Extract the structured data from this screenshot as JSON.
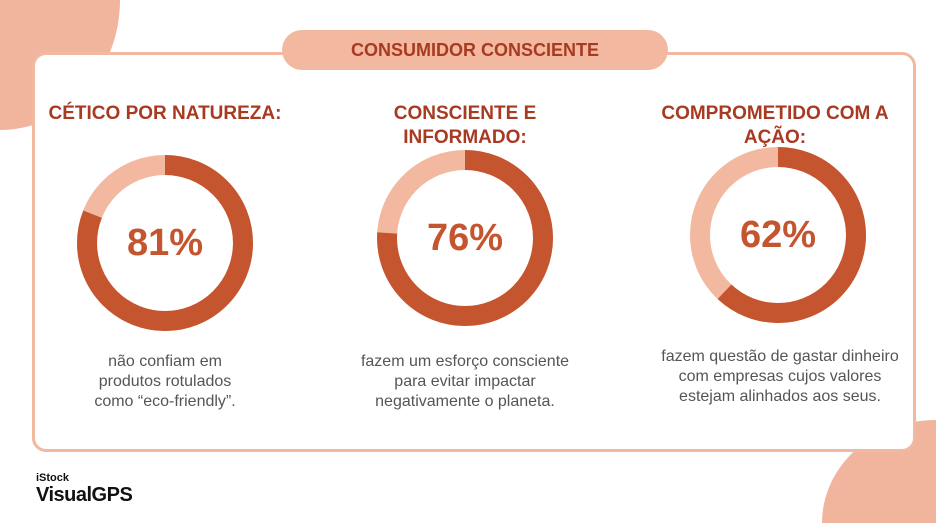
{
  "title": "CONSUMIDOR CONSCIENTE",
  "colors": {
    "dark": "#c4552f",
    "light": "#f2b8a0",
    "text": "#a83a22"
  },
  "stats": [
    {
      "heading": "CÉTICO POR NATUREZA:",
      "percent": 81,
      "label": "81%",
      "desc": "não confiam em produtos rotulados como “eco-friendly”."
    },
    {
      "heading": "CONSCIENTE E INFORMADO:",
      "percent": 76,
      "label": "76%",
      "desc": "fazem um esforço consciente para evitar impactar negativamente o planeta."
    },
    {
      "heading": "COMPROMETIDO COM A AÇÃO:",
      "percent": 62,
      "label": "62%",
      "desc": "fazem questão de gastar dinheiro com empresas cujos valores estejam alinhados aos seus."
    }
  ],
  "logo": {
    "brand": "iStock",
    "product": "VisualGPS"
  }
}
